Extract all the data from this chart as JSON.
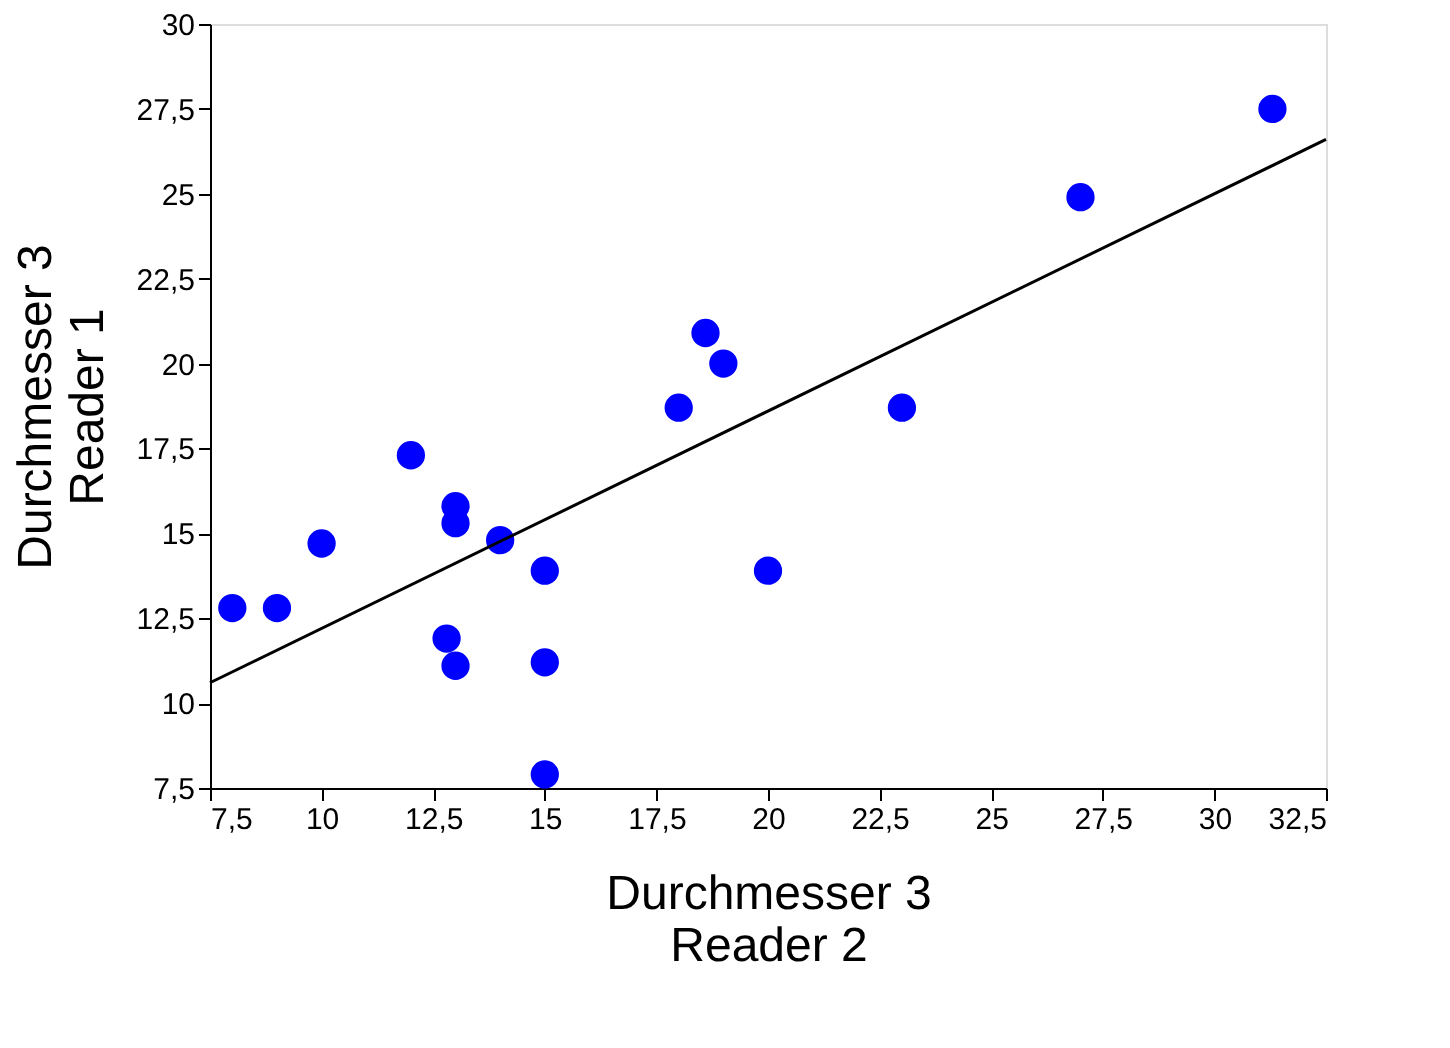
{
  "chart_data": {
    "type": "scatter",
    "xlabel": "Durchmesser 3\nReader 2",
    "ylabel": "Durchmesser 3\nReader 1",
    "series": [
      {
        "color": "#0000ff",
        "marker": "circle",
        "x": [
          8.0,
          9.0,
          10.0,
          12.0,
          13.0,
          13.0,
          14.0,
          12.8,
          13.0,
          15.0,
          15.0,
          15.0,
          18.0,
          18.6,
          19.0,
          20.0,
          23.0,
          27.0,
          31.3
        ],
        "values": [
          12.8,
          12.8,
          14.7,
          17.3,
          15.8,
          15.3,
          14.8,
          11.9,
          11.1,
          13.9,
          11.2,
          7.9,
          18.7,
          20.9,
          20.0,
          13.9,
          18.7,
          24.9,
          27.5
        ]
      },
      {
        "type": "line",
        "color": "#000000",
        "marker": "none",
        "x": [
          7.5,
          32.5
        ],
        "values": [
          10.6,
          26.6
        ]
      }
    ],
    "xlim": [
      7.5,
      32.5
    ],
    "ylim": [
      7.5,
      30
    ],
    "xticks": [
      {
        "value": 7.5,
        "label": "7,5"
      },
      10,
      {
        "value": 12.5,
        "label": "12,5"
      },
      15,
      {
        "value": 17.5,
        "label": "17,5"
      },
      20,
      {
        "value": 22.5,
        "label": "22,5"
      },
      25,
      {
        "value": 27.5,
        "label": "27,5"
      },
      30,
      {
        "value": 32.5,
        "label": "32,5"
      }
    ],
    "yticks": [
      {
        "value": 7.5,
        "label": "7,5"
      },
      10,
      {
        "value": 12.5,
        "label": "12,5"
      },
      15,
      {
        "value": 17.5,
        "label": "17,5"
      },
      20,
      {
        "value": 22.5,
        "label": "22,5"
      },
      25,
      {
        "value": 27.5,
        "label": "27,5"
      },
      30
    ],
    "grid": false
  }
}
